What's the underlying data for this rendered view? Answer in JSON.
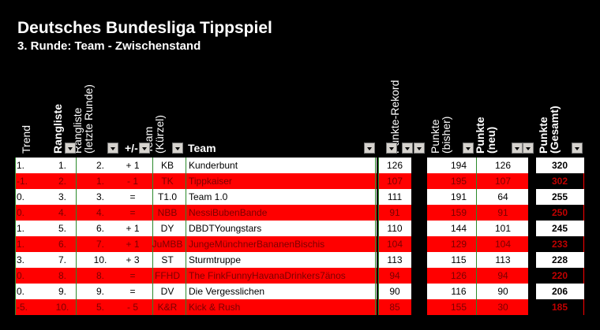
{
  "title": "Deutsches Bundesliga Tippspiel",
  "subtitle": "3. Runde: Team - Zwischenstand",
  "headers": {
    "trend": "Trend",
    "rangliste": "Rangliste",
    "rangliste_letzte": "Rangliste\n(letzte Runde)",
    "change": "+/-",
    "team_kuerzel": "Team\n(Kürzel)",
    "team": "Team",
    "rekord": "Punkte-Rekord",
    "bisher": "Punkte\n(bisher)",
    "neu": "Punkte\n(neu)",
    "gesamt": "Punkte\n(Gesamt)"
  },
  "rows": [
    {
      "trend": "1.",
      "rank": "1.",
      "last": "2.",
      "change": "+ 1",
      "abbr": "KB",
      "team": "Kunderbunt",
      "rekord": "126",
      "bisher": "194",
      "neu": "126",
      "gesamt": "320",
      "color": "white"
    },
    {
      "trend": "-1.",
      "rank": "2.",
      "last": "1.",
      "change": "- 1",
      "abbr": "TK",
      "team": "Tippkaiser",
      "rekord": "107",
      "bisher": "195",
      "neu": "107",
      "gesamt": "302",
      "color": "red"
    },
    {
      "trend": "0.",
      "rank": "3.",
      "last": "3.",
      "change": "=",
      "abbr": "T1.0",
      "team": "Team 1.0",
      "rekord": "111",
      "bisher": "191",
      "neu": "64",
      "gesamt": "255",
      "color": "white"
    },
    {
      "trend": "0.",
      "rank": "4.",
      "last": "4.",
      "change": "=",
      "abbr": "NBB",
      "team": "NessiBubenBande",
      "rekord": "91",
      "bisher": "159",
      "neu": "91",
      "gesamt": "250",
      "color": "red"
    },
    {
      "trend": "1.",
      "rank": "5.",
      "last": "6.",
      "change": "+ 1",
      "abbr": "DY",
      "team": "DBDTYoungstars",
      "rekord": "110",
      "bisher": "144",
      "neu": "101",
      "gesamt": "245",
      "color": "white"
    },
    {
      "trend": "1.",
      "rank": "6.",
      "last": "7.",
      "change": "+ 1",
      "abbr": "JuMBB",
      "team": "JungeMünchnerBananenBischis",
      "rekord": "104",
      "bisher": "129",
      "neu": "104",
      "gesamt": "233",
      "color": "red"
    },
    {
      "trend": "3.",
      "rank": "7.",
      "last": "10.",
      "change": "+ 3",
      "abbr": "ST",
      "team": "Sturmtruppe",
      "rekord": "113",
      "bisher": "115",
      "neu": "113",
      "gesamt": "228",
      "color": "white"
    },
    {
      "trend": "0.",
      "rank": "8.",
      "last": "8.",
      "change": "=",
      "abbr": "FFHD",
      "team": "The FinkFunnyHavanaDrinkers7änos",
      "rekord": "94",
      "bisher": "126",
      "neu": "94",
      "gesamt": "220",
      "color": "red"
    },
    {
      "trend": "0.",
      "rank": "9.",
      "last": "9.",
      "change": "=",
      "abbr": "DV",
      "team": "Die Vergesslichen",
      "rekord": "90",
      "bisher": "116",
      "neu": "90",
      "gesamt": "206",
      "color": "white"
    },
    {
      "trend": "-5.",
      "rank": "10.",
      "last": "5.",
      "change": "- 5",
      "abbr": "K&R",
      "team": "Kick & Rush",
      "rekord": "85",
      "bisher": "155",
      "neu": "30",
      "gesamt": "185",
      "color": "red"
    }
  ]
}
